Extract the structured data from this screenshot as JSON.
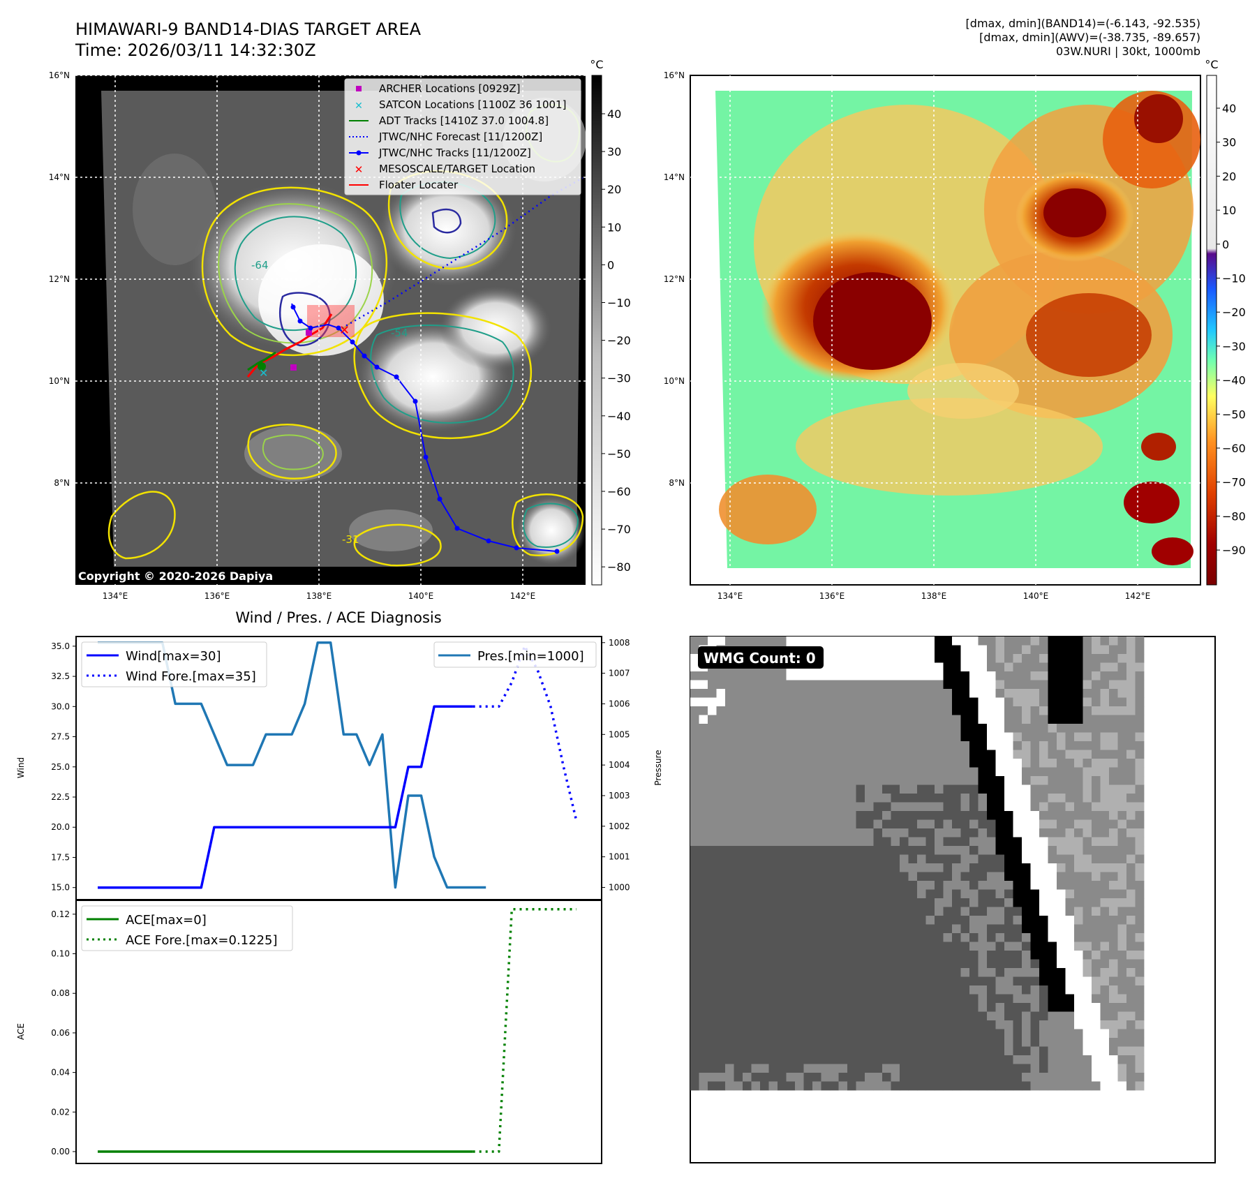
{
  "header": {
    "title_line1": "HIMAWARI-9 BAND14-DIAS TARGET AREA",
    "title_line2": "Time: 2026/03/11 14:32:30Z",
    "info_line1": "[dmax, dmin](BAND14)=(-6.143, -92.535)",
    "info_line2": "[dmax, dmin](AWV)=(-38.735, -89.657)",
    "info_line3": "03W.NURI | 30kt, 1000mb"
  },
  "map_common": {
    "lat_ticks": [
      "16°N",
      "14°N",
      "12°N",
      "10°N",
      "8°N"
    ],
    "lon_ticks": [
      "134°E",
      "136°E",
      "138°E",
      "140°E",
      "142°E"
    ],
    "unit": "°C"
  },
  "band14_panel": {
    "copyright": "Copyright © 2020-2026 Dapiya",
    "contour_labels": [
      "-64",
      "-54",
      "-31"
    ],
    "colorbar_ticks": [
      "40",
      "30",
      "20",
      "10",
      "0",
      "−10",
      "−20",
      "−30",
      "−40",
      "−50",
      "−60",
      "−70",
      "−80"
    ],
    "legend": [
      {
        "label": "ARCHER Locations [0929Z]",
        "color": "#c000c0"
      },
      {
        "label": "SATCON Locations [1100Z 36 1001]",
        "color": "#17becf"
      },
      {
        "label": "ADT Tracks [1410Z 37.0 1004.8]",
        "color": "#008000"
      },
      {
        "label": "JTWC/NHC Forecast [11/1200Z]",
        "color": "#0000ff"
      },
      {
        "label": "JTWC/NHC Tracks [11/1200Z]",
        "color": "#0000ff"
      },
      {
        "label": "MESOSCALE/TARGET Location",
        "color": "#ff0000"
      },
      {
        "label": "Floater Locater",
        "color": "#ff0000"
      }
    ]
  },
  "awv_panel": {
    "colorbar_ticks": [
      "40",
      "30",
      "20",
      "10",
      "0",
      "−10",
      "−20",
      "−30",
      "−40",
      "−50",
      "−60",
      "−70",
      "−80",
      "−90"
    ]
  },
  "wmg_panel": {
    "badge": "WMG Count: 0"
  },
  "chart_data": [
    {
      "type": "line",
      "title": "Wind / Pres. / ACE Diagnosis",
      "ylabel": "Wind",
      "ylabel_right": "Pressure",
      "ylim": [
        14.0,
        35.8
      ],
      "ylim_right": [
        999.6,
        1008.2
      ],
      "yticks": [
        "35.0",
        "32.5",
        "30.0",
        "27.5",
        "25.0",
        "22.5",
        "20.0",
        "17.5",
        "15.0"
      ],
      "yticks_right": [
        "1008",
        "1007",
        "1006",
        "1005",
        "1004",
        "1003",
        "1002",
        "1001",
        "1000"
      ],
      "x": [
        0,
        1,
        2,
        3,
        4,
        5,
        6,
        7,
        8,
        9,
        10,
        11,
        12,
        13,
        14,
        15,
        16,
        17,
        18,
        19,
        20,
        21,
        22,
        23,
        24,
        25,
        26,
        27,
        28,
        29
      ],
      "series": [
        {
          "name": "Wind[max=30]",
          "color": "#0000ff",
          "style": "solid",
          "axis": "left",
          "x": [
            0,
            1,
            2,
            3,
            4,
            5,
            6,
            7,
            8,
            9,
            10,
            11,
            12,
            13,
            14,
            15,
            16,
            17,
            18,
            19,
            20,
            21,
            22,
            23,
            24,
            25,
            26,
            27,
            28,
            29
          ],
          "values": [
            15,
            15,
            15,
            15,
            15,
            15,
            15,
            15,
            15,
            20,
            20,
            20,
            20,
            20,
            20,
            20,
            20,
            20,
            20,
            20,
            20,
            20,
            20,
            20,
            25,
            25,
            30,
            30,
            30,
            30
          ]
        },
        {
          "name": "Wind Fore.[max=35]",
          "color": "#0000ff",
          "style": "dotted",
          "axis": "left",
          "x": [
            29,
            30,
            31,
            32,
            33,
            34,
            35,
            36,
            37
          ],
          "values": [
            30,
            30,
            30,
            32,
            35,
            33,
            30,
            25,
            20.5
          ]
        },
        {
          "name": "Pres.[min=1000]",
          "color": "#1f77b4",
          "style": "solid",
          "axis": "right",
          "x": [
            0,
            1,
            2,
            3,
            4,
            5,
            6,
            7,
            8,
            9,
            10,
            11,
            12,
            13,
            14,
            15,
            16,
            17,
            18,
            19,
            20,
            21,
            22,
            23,
            24,
            25,
            26,
            27,
            28,
            29,
            30
          ],
          "values": [
            1008,
            1008,
            1008,
            1008,
            1008,
            1008,
            1006,
            1006,
            1006,
            1005,
            1004,
            1004,
            1004,
            1005,
            1005,
            1005,
            1006,
            1008,
            1008,
            1005,
            1005,
            1004,
            1005,
            1000,
            1003,
            1003,
            1001,
            1000,
            1000,
            1000,
            1000
          ]
        }
      ]
    },
    {
      "type": "line",
      "title": "",
      "ylabel": "ACE",
      "ylim": [
        -0.006,
        0.127
      ],
      "yticks": [
        "0.12",
        "0.10",
        "0.08",
        "0.06",
        "0.04",
        "0.02",
        "0.00"
      ],
      "series": [
        {
          "name": "ACE[max=0]",
          "color": "#008000",
          "style": "solid",
          "x": [
            0,
            1,
            2,
            3,
            4,
            5,
            6,
            7,
            8,
            9,
            10,
            11,
            12,
            13,
            14,
            15,
            16,
            17,
            18,
            19,
            20,
            21,
            22,
            23,
            24,
            25,
            26,
            27,
            28,
            29
          ],
          "values": [
            0,
            0,
            0,
            0,
            0,
            0,
            0,
            0,
            0,
            0,
            0,
            0,
            0,
            0,
            0,
            0,
            0,
            0,
            0,
            0,
            0,
            0,
            0,
            0,
            0,
            0,
            0,
            0,
            0,
            0
          ]
        },
        {
          "name": "ACE Fore.[max=0.1225]",
          "color": "#008000",
          "style": "dotted",
          "x": [
            29,
            30,
            31,
            32,
            33,
            34,
            35,
            36,
            37
          ],
          "values": [
            0,
            0,
            0,
            0.1225,
            0.1225,
            0.1225,
            0.1225,
            0.1225,
            0.1225
          ]
        }
      ]
    }
  ]
}
